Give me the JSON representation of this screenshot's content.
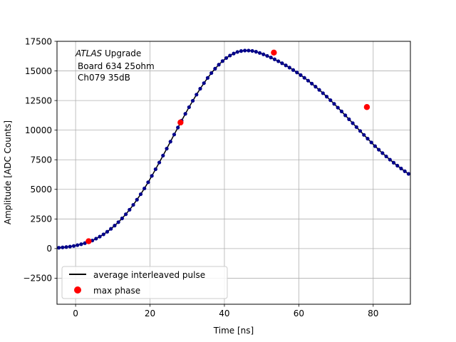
{
  "chart_data": {
    "type": "scatter",
    "title": "",
    "xlabel": "Time [ns]",
    "ylabel": "Amplitude [ADC Counts]",
    "xlim": [
      -5,
      90
    ],
    "ylim": [
      -4700,
      17500
    ],
    "xticks": [
      0,
      20,
      40,
      60,
      80
    ],
    "yticks": [
      -2500,
      0,
      2500,
      5000,
      7500,
      10000,
      12500,
      15000,
      17500
    ],
    "grid": true,
    "annotation": {
      "italic_part": "ATLAS",
      "upright_part": " Upgrade",
      "line2": "Board 634 25ohm",
      "line3": "Ch079 35dB"
    },
    "legend": {
      "placement": "lower-left",
      "entries": [
        "average interleaved pulse",
        "max phase"
      ]
    },
    "series": [
      {
        "name": "average interleaved pulse",
        "style": "line+dots",
        "line_color": "#000000",
        "dot_color": "#00008b",
        "x": [
          -4.5,
          -3.5,
          -2.5,
          -1.5,
          -0.5,
          0.5,
          1.5,
          2.5,
          3.5,
          4.5,
          5.5,
          6.5,
          7.5,
          8.5,
          9.5,
          10.5,
          11.5,
          12.5,
          13.5,
          14.5,
          15.5,
          16.5,
          17.5,
          18.5,
          19.5,
          20.5,
          21.5,
          22.5,
          23.5,
          24.5,
          25.5,
          26.5,
          27.5,
          28.5,
          29.5,
          30.5,
          31.5,
          32.5,
          33.5,
          34.5,
          35.5,
          36.5,
          37.5,
          38.5,
          39.5,
          40.5,
          41.5,
          42.5,
          43.5,
          44.5,
          45.5,
          46.5,
          47.5,
          48.5,
          49.5,
          50.5,
          51.5,
          52.5,
          53.5,
          54.5,
          55.5,
          56.5,
          57.5,
          58.5,
          59.5,
          60.5,
          61.5,
          62.5,
          63.5,
          64.5,
          65.5,
          66.5,
          67.5,
          68.5,
          69.5,
          70.5,
          71.5,
          72.5,
          73.5,
          74.5,
          75.5,
          76.5,
          77.5,
          78.5,
          79.5,
          80.5,
          81.5,
          82.5,
          83.5,
          84.5,
          85.5,
          86.5,
          87.5,
          88.5,
          89.5
        ],
        "y": [
          70,
          100,
          130,
          170,
          220,
          290,
          370,
          460,
          560,
          680,
          840,
          1010,
          1200,
          1420,
          1670,
          1940,
          2230,
          2550,
          2900,
          3280,
          3690,
          4130,
          4590,
          5080,
          5600,
          6140,
          6700,
          7270,
          7850,
          8440,
          9030,
          9630,
          10220,
          10800,
          11380,
          11940,
          12480,
          13000,
          13500,
          13970,
          14410,
          14820,
          15190,
          15530,
          15830,
          16090,
          16300,
          16470,
          16600,
          16680,
          16720,
          16720,
          16690,
          16620,
          16520,
          16400,
          16270,
          16130,
          15980,
          15820,
          15650,
          15470,
          15280,
          15080,
          14870,
          14650,
          14420,
          14180,
          13930,
          13670,
          13400,
          13120,
          12830,
          12530,
          12220,
          11900,
          11580,
          11250,
          10920,
          10590,
          10260,
          9930,
          9600,
          9280,
          8960,
          8650,
          8350,
          8060,
          7780,
          7510,
          7250,
          7000,
          6760,
          6530,
          6310
        ]
      },
      {
        "name": "max phase",
        "style": "marker",
        "color": "#ff0000",
        "x": [
          3.5,
          28.2,
          53.3,
          78.3
        ],
        "y": [
          620,
          10650,
          16550,
          11950
        ]
      }
    ]
  }
}
